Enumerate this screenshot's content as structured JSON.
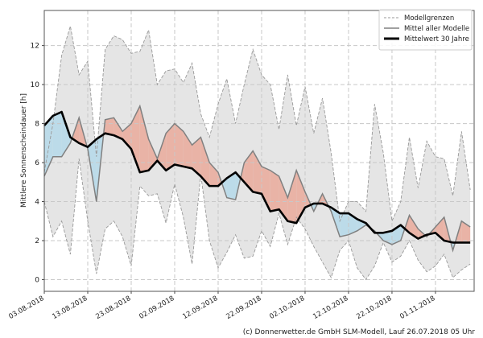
{
  "chart_data": {
    "type": "area",
    "title": "",
    "xlabel": "",
    "ylabel": "Mittlere Sonnenscheindauer [h]",
    "ylim": [
      -0.6,
      13.8
    ],
    "yticks": [
      0,
      2,
      4,
      6,
      8,
      10,
      12
    ],
    "x_start": "03.08.2018",
    "xtick_labels": [
      "03.08.2018",
      "13.08.2018",
      "23.08.2018",
      "02.09.2018",
      "12.09.2018",
      "22.09.2018",
      "02.10.2018",
      "12.10.2018",
      "22.10.2018",
      "01.11.2018"
    ],
    "x_dates": [
      "03.08.2018",
      "05.08.2018",
      "07.08.2018",
      "09.08.2018",
      "11.08.2018",
      "13.08.2018",
      "15.08.2018",
      "17.08.2018",
      "19.08.2018",
      "21.08.2018",
      "23.08.2018",
      "25.08.2018",
      "27.08.2018",
      "29.08.2018",
      "31.08.2018",
      "02.09.2018",
      "04.09.2018",
      "06.09.2018",
      "08.09.2018",
      "10.09.2018",
      "12.09.2018",
      "14.09.2018",
      "16.09.2018",
      "18.09.2018",
      "20.09.2018",
      "22.09.2018",
      "24.09.2018",
      "26.09.2018",
      "28.09.2018",
      "30.09.2018",
      "02.10.2018",
      "04.10.2018",
      "06.10.2018",
      "08.10.2018",
      "10.10.2018",
      "12.10.2018",
      "14.10.2018",
      "16.10.2018",
      "18.10.2018",
      "20.10.2018",
      "22.10.2018",
      "24.10.2018",
      "26.10.2018",
      "28.10.2018",
      "30.10.2018",
      "01.11.2018",
      "03.11.2018",
      "05.11.2018",
      "07.11.2018",
      "09.11.2018"
    ],
    "grid": true,
    "legend_position": "top-right",
    "series": [
      {
        "name": "Modellgrenzen",
        "style": "dashed",
        "role": "upper",
        "values": [
          5.5,
          8.0,
          11.5,
          13.0,
          10.5,
          11.2,
          6.3,
          11.8,
          12.5,
          12.3,
          11.6,
          11.7,
          12.8,
          10.0,
          10.7,
          10.8,
          10.1,
          11.1,
          8.5,
          7.3,
          9.0,
          10.3,
          8.0,
          10.0,
          11.8,
          10.5,
          10.0,
          7.7,
          10.5,
          7.9,
          9.9,
          7.5,
          9.3,
          6.5,
          3.0,
          4.0,
          4.0,
          3.5,
          9.0,
          6.5,
          3.0,
          4.0,
          7.3,
          4.7,
          7.1,
          6.3,
          6.2,
          4.3,
          7.6,
          4.6
        ]
      },
      {
        "name": "Modellgrenzen",
        "style": "dashed",
        "role": "lower",
        "values": [
          4.0,
          2.2,
          3.0,
          1.3,
          6.2,
          3.0,
          0.3,
          2.6,
          3.0,
          2.2,
          0.7,
          4.8,
          4.3,
          4.4,
          2.9,
          4.9,
          3.2,
          0.8,
          5.4,
          2.0,
          0.6,
          1.4,
          2.3,
          1.1,
          1.2,
          2.5,
          1.7,
          3.4,
          1.8,
          3.2,
          2.6,
          1.7,
          0.9,
          0.1,
          1.5,
          2.0,
          0.6,
          0.0,
          0.7,
          1.9,
          0.9,
          1.2,
          2.0,
          1.0,
          0.4,
          0.7,
          1.3,
          0.1,
          0.5,
          0.8
        ]
      },
      {
        "name": "Mittel aller Modelle",
        "style": "solid-gray",
        "values": [
          5.3,
          6.3,
          6.3,
          7.0,
          8.3,
          6.7,
          4.0,
          8.2,
          8.3,
          7.6,
          8.0,
          8.9,
          7.2,
          6.2,
          7.5,
          8.0,
          7.6,
          6.9,
          7.3,
          6.0,
          5.5,
          4.2,
          4.1,
          6.0,
          6.6,
          5.8,
          5.6,
          5.3,
          4.2,
          5.6,
          4.5,
          3.5,
          4.4,
          3.5,
          2.2,
          2.3,
          2.5,
          2.8,
          2.5,
          2.0,
          1.8,
          2.0,
          3.3,
          2.6,
          2.2,
          2.7,
          3.2,
          1.5,
          3.0,
          2.7
        ]
      },
      {
        "name": "Mittelwert 30 Jahre",
        "style": "solid-black",
        "values": [
          7.9,
          8.4,
          8.6,
          7.3,
          7.0,
          6.8,
          7.2,
          7.5,
          7.4,
          7.2,
          6.7,
          5.5,
          5.6,
          6.1,
          5.6,
          5.9,
          5.8,
          5.7,
          5.3,
          4.8,
          4.8,
          5.2,
          5.5,
          5.0,
          4.5,
          4.4,
          3.5,
          3.6,
          3.0,
          2.9,
          3.7,
          3.9,
          3.9,
          3.7,
          3.4,
          3.4,
          3.1,
          2.9,
          2.4,
          2.4,
          2.5,
          2.8,
          2.4,
          2.1,
          2.3,
          2.4,
          2.0,
          1.9,
          1.9,
          1.9
        ]
      }
    ],
    "colors": {
      "band": "#e5e5e5",
      "above": "#e9b3a6",
      "below": "#bcdbe9",
      "model_mean": "#808080",
      "climate_mean": "#000000",
      "bounds": "#999999"
    }
  },
  "footer": "(c) Donnerwetter.de GmbH SLM-Modell, Lauf 26.07.2018 05 Uhr"
}
